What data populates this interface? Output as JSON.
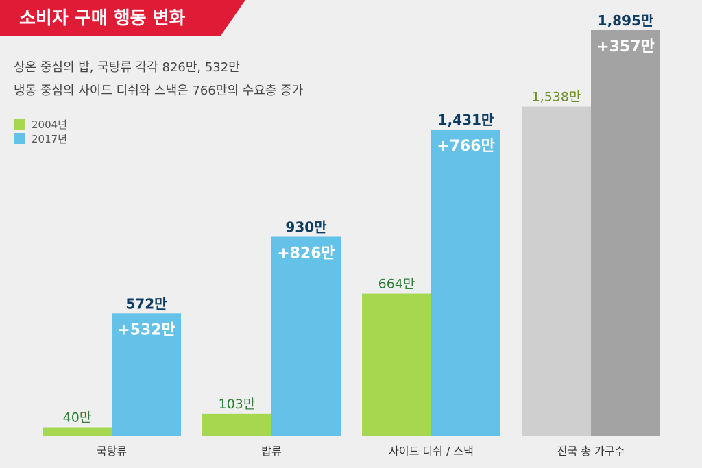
{
  "title": "소비자 구매 행동 변화",
  "subtitle_lines": [
    "상온 중심의 밥, 국탕류 각각 826만, 532만",
    "냉동 중심의 사이드 디쉬와 스낵은 766만의 수요층 증가"
  ],
  "colors": {
    "banner": "#e01b36",
    "background": "#efeff0",
    "series_2004": "#a5d84f",
    "series_2017": "#64c2e8",
    "total_2004": "#cfcfd0",
    "total_2017": "#a3a3a4",
    "value_dark": "#0d3c63"
  },
  "chart_data": {
    "type": "bar",
    "title": "소비자 구매 행동 변화",
    "categories": [
      "국탕류",
      "밥류",
      "사이드 디쉬 / 스낵",
      "전국 총 가구수"
    ],
    "series": [
      {
        "name": "2004년",
        "values": [
          40,
          103,
          664,
          1538
        ],
        "labels": [
          "40만",
          "103만",
          "664만",
          "1,538만"
        ]
      },
      {
        "name": "2017년",
        "values": [
          572,
          930,
          1431,
          1895
        ],
        "labels": [
          "572만",
          "930만",
          "1,431만",
          "1,895만"
        ]
      }
    ],
    "increase_labels": [
      "+532만",
      "+826만",
      "+766만",
      "+357만"
    ],
    "legend": [
      "2004년",
      "2017년"
    ],
    "legend_position": "top-left",
    "grid": false
  }
}
